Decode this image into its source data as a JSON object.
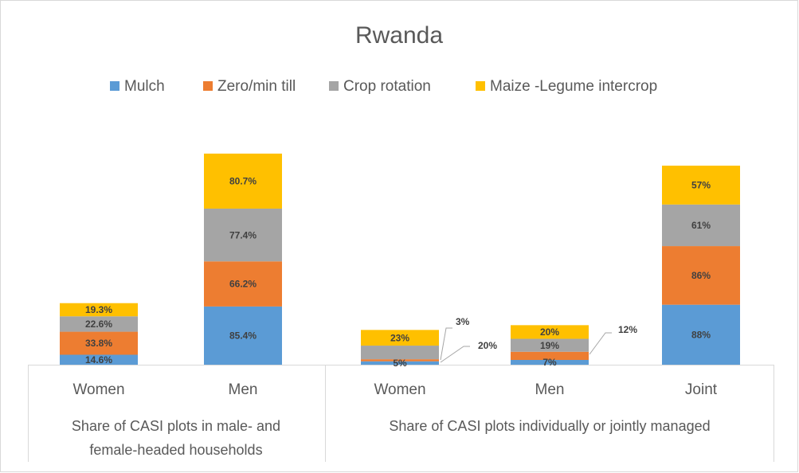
{
  "chart_data": {
    "type": "stacked_bar",
    "title": "Rwanda",
    "categories": [
      "Women",
      "Men",
      "Women",
      "Men",
      "Joint"
    ],
    "groups": [
      [
        "Share of CASI plots in male- and",
        "female-headed households"
      ],
      [
        "Share of CASI plots individually or jointly managed"
      ]
    ],
    "series": [
      {
        "name": "Mulch",
        "color": "#5b9bd5",
        "values": [
          14.6,
          85.4,
          5,
          7,
          88
        ],
        "value_labels": [
          "14.6%",
          "85.4%",
          "5%",
          "7%",
          "88%"
        ]
      },
      {
        "name": "Zero/min till",
        "color": "#ed7d31",
        "values": [
          33.8,
          66.2,
          3,
          12,
          86
        ],
        "value_labels": [
          "33.8%",
          "66.2%",
          "3%",
          "12%",
          "86%"
        ]
      },
      {
        "name": "Crop rotation",
        "color": "#a5a5a5",
        "values": [
          22.6,
          77.4,
          20,
          19,
          61
        ],
        "value_labels": [
          "22.6%",
          "77.4%",
          "20%",
          "19%",
          "61%"
        ]
      },
      {
        "name": "Maize -Legume intercrop",
        "color": "#ffc000",
        "values": [
          19.3,
          80.7,
          23,
          20,
          57
        ],
        "value_labels": [
          "19.3%",
          "80.7%",
          "23%",
          "20%",
          "57%"
        ]
      }
    ],
    "legend": "top"
  }
}
